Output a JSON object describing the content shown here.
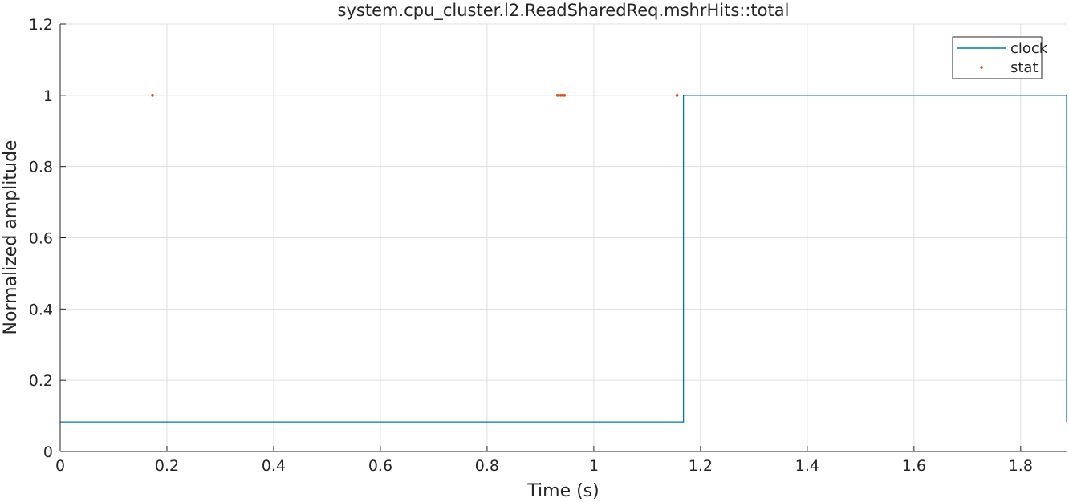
{
  "chart_data": {
    "type": "line",
    "title": "system.cpu_cluster.l2.ReadSharedReq.mshrHits::total",
    "xlabel": "Time (s)",
    "ylabel": "Normalized amplitude",
    "xlim": [
      0,
      1.886
    ],
    "ylim": [
      0,
      1.2
    ],
    "xticks": [
      0,
      0.2,
      0.4,
      0.6,
      0.8,
      1,
      1.2,
      1.4,
      1.6,
      1.8
    ],
    "xtick_labels": [
      "0",
      "0.2",
      "0.4",
      "0.6",
      "0.8",
      "1",
      "1.2",
      "1.4",
      "1.6",
      "1.8"
    ],
    "yticks": [
      0,
      0.2,
      0.4,
      0.6,
      0.8,
      1,
      1.2
    ],
    "ytick_labels": [
      "0",
      "0.2",
      "0.4",
      "0.6",
      "0.8",
      "1",
      "1.2"
    ],
    "grid": true,
    "legend_position": "top-right",
    "series": [
      {
        "name": "clock",
        "style": "step-line",
        "color": "#0072bd",
        "x": [
          0,
          1.168,
          1.168,
          1.886,
          1.886
        ],
        "y": [
          0.083,
          0.083,
          1,
          1,
          0.083
        ]
      },
      {
        "name": "stat",
        "style": "markers",
        "color": "#d95319",
        "x": [
          0.173,
          0.932,
          0.938,
          0.942,
          0.945,
          1.156
        ],
        "y": [
          1,
          1,
          1,
          1,
          1,
          1
        ]
      }
    ]
  }
}
